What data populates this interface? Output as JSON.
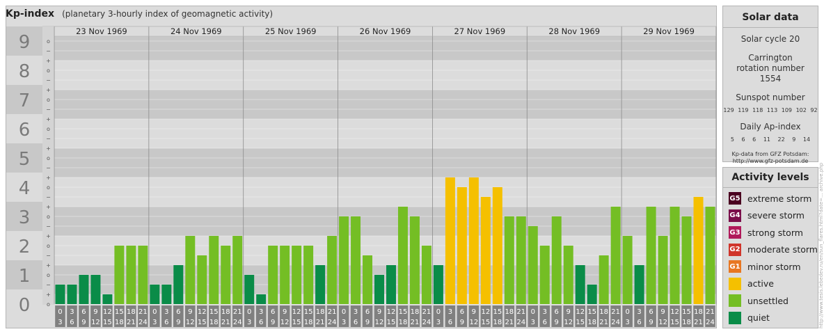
{
  "header": {
    "title": "Kp-index",
    "subtitle": "(planetary 3-hourly index of geomagnetic activity)"
  },
  "chart_data": {
    "type": "bar",
    "title": "Kp-index",
    "y_axis_labels": [
      "0",
      "1",
      "2",
      "3",
      "4",
      "5",
      "6",
      "7",
      "8",
      "9"
    ],
    "ylim": [
      0,
      9.67
    ],
    "minor_tick_labels": [
      "o",
      "+",
      "−"
    ],
    "days": [
      "23 Nov 1969",
      "24 Nov 1969",
      "25 Nov 1969",
      "26 Nov 1969",
      "27 Nov 1969",
      "28 Nov 1969",
      "29 Nov 1969"
    ],
    "intervals_top": [
      "0",
      "3",
      "6",
      "9",
      "12",
      "15",
      "18",
      "21"
    ],
    "intervals_bottom": [
      "3",
      "6",
      "9",
      "12",
      "15",
      "18",
      "21",
      "24"
    ],
    "values": [
      0.667,
      0.667,
      1.0,
      1.0,
      0.333,
      2.0,
      2.0,
      2.0,
      0.667,
      0.667,
      1.333,
      2.333,
      1.667,
      2.333,
      2.0,
      2.333,
      1.0,
      0.333,
      2.0,
      2.0,
      2.0,
      2.0,
      1.333,
      2.333,
      3.0,
      3.0,
      1.667,
      1.0,
      1.333,
      3.333,
      3.0,
      2.0,
      1.333,
      4.333,
      4.0,
      4.333,
      3.667,
      4.0,
      3.0,
      3.0,
      2.667,
      2.0,
      3.0,
      2.0,
      1.333,
      0.667,
      1.667,
      3.333,
      2.333,
      1.333,
      3.333,
      2.333,
      3.333,
      3.0,
      3.667,
      3.333
    ],
    "colors": {
      "quiet": "#0a8c48",
      "unsettled": "#74be24",
      "active": "#f5c000",
      "g1": "#e87722",
      "g2": "#d0352b",
      "g3": "#b0195a",
      "g4": "#7a0e4a",
      "g5": "#4a0020"
    }
  },
  "solar_data": {
    "title": "Solar data",
    "solar_cycle": "Solar cycle 20",
    "carrington": "Carrington rotation number 1554",
    "sunspot_label": "Sunspot number",
    "sunspot_values": [
      "129",
      "119",
      "118",
      "113",
      "109",
      "102",
      "92"
    ],
    "ap_label": "Daily Ap-index",
    "ap_values": [
      "5",
      "6",
      "6",
      "11",
      "22",
      "9",
      "14"
    ],
    "source_line1": "Kp-data from GFZ Potsdam:",
    "source_line2": "http://www.gfz-potsdam.de"
  },
  "activity_levels": {
    "title": "Activity levels",
    "items": [
      {
        "code": "G5",
        "label": "extreme storm",
        "color": "#4a0020"
      },
      {
        "code": "G4",
        "label": "severe storm",
        "color": "#7a0e4a"
      },
      {
        "code": "G3",
        "label": "strong storm",
        "color": "#b0195a"
      },
      {
        "code": "G2",
        "label": "moderate storm",
        "color": "#d0352b"
      },
      {
        "code": "G1",
        "label": "minor storm",
        "color": "#e87722"
      },
      {
        "code": "",
        "label": "active",
        "color": "#f5c000"
      },
      {
        "code": "",
        "label": "unsettled",
        "color": "#74be24"
      },
      {
        "code": "",
        "label": "quiet",
        "color": "#0a8c48"
      }
    ]
  },
  "credit": "http://www.tesis.lebedev.ru/en/sun_flares.html?date=... archive.php"
}
